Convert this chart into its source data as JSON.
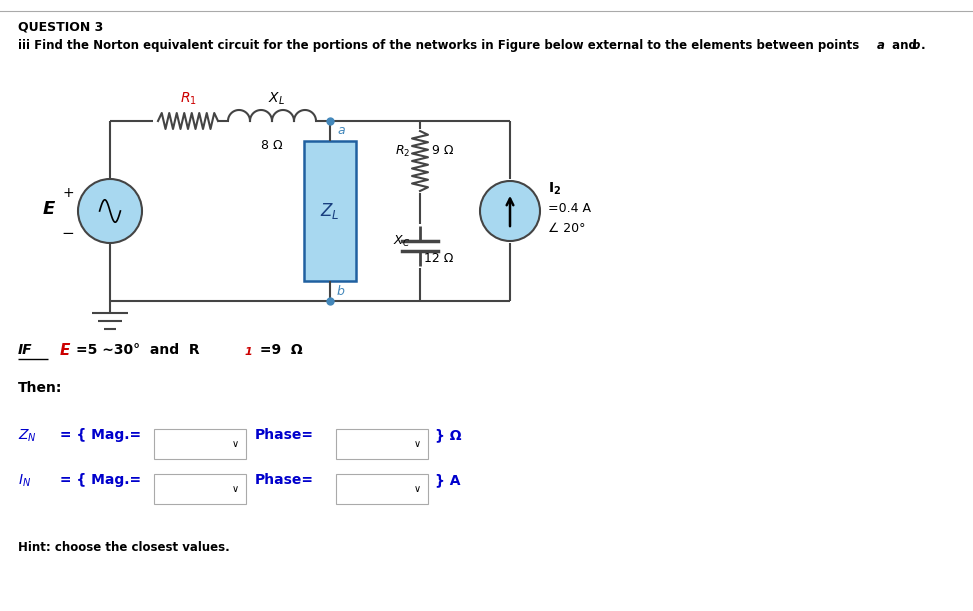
{
  "bg_color": "#ffffff",
  "header_line": "QUESTION 3",
  "desc_text": "iii Find the Norton equivalent circuit for the portions of the networks in Figure below external to the elements between points ",
  "desc_a": "a",
  "desc_and": " and ",
  "desc_b": "b",
  "desc_end": ".",
  "circuit": {
    "zl_fill": "#a8d8f0",
    "source_fill": "#a8d8f0",
    "i2_fill": "#a8d8f0",
    "wire_color": "#555555",
    "r1_color": "#cc0000",
    "r2_val": "9 Ω",
    "xl_val": "8 Ω",
    "xc_val": "12 Ω",
    "i2_val": "=0.4 A",
    "i2_angle": "∠ 20°",
    "pt_color": "#4488bb"
  },
  "if_text_black": "IF  ",
  "formula_E_red": "E",
  "formula_rest": "=5 ∼30°  and  ",
  "formula_R_black": "R",
  "formula_1_red": "1",
  "formula_end": " =9  Ω",
  "then_text": "Then:",
  "zn_blue": "Z",
  "zn_sub": "N",
  "zn_rest": " = { Mag.=",
  "phase_text": "Phase=",
  "omega_text": "} Ω",
  "in_blue": "I",
  "in_sub": "N",
  "in_rest": " = { Mag.=",
  "a_text": "} A",
  "hint_text": "Hint: choose the closest values."
}
